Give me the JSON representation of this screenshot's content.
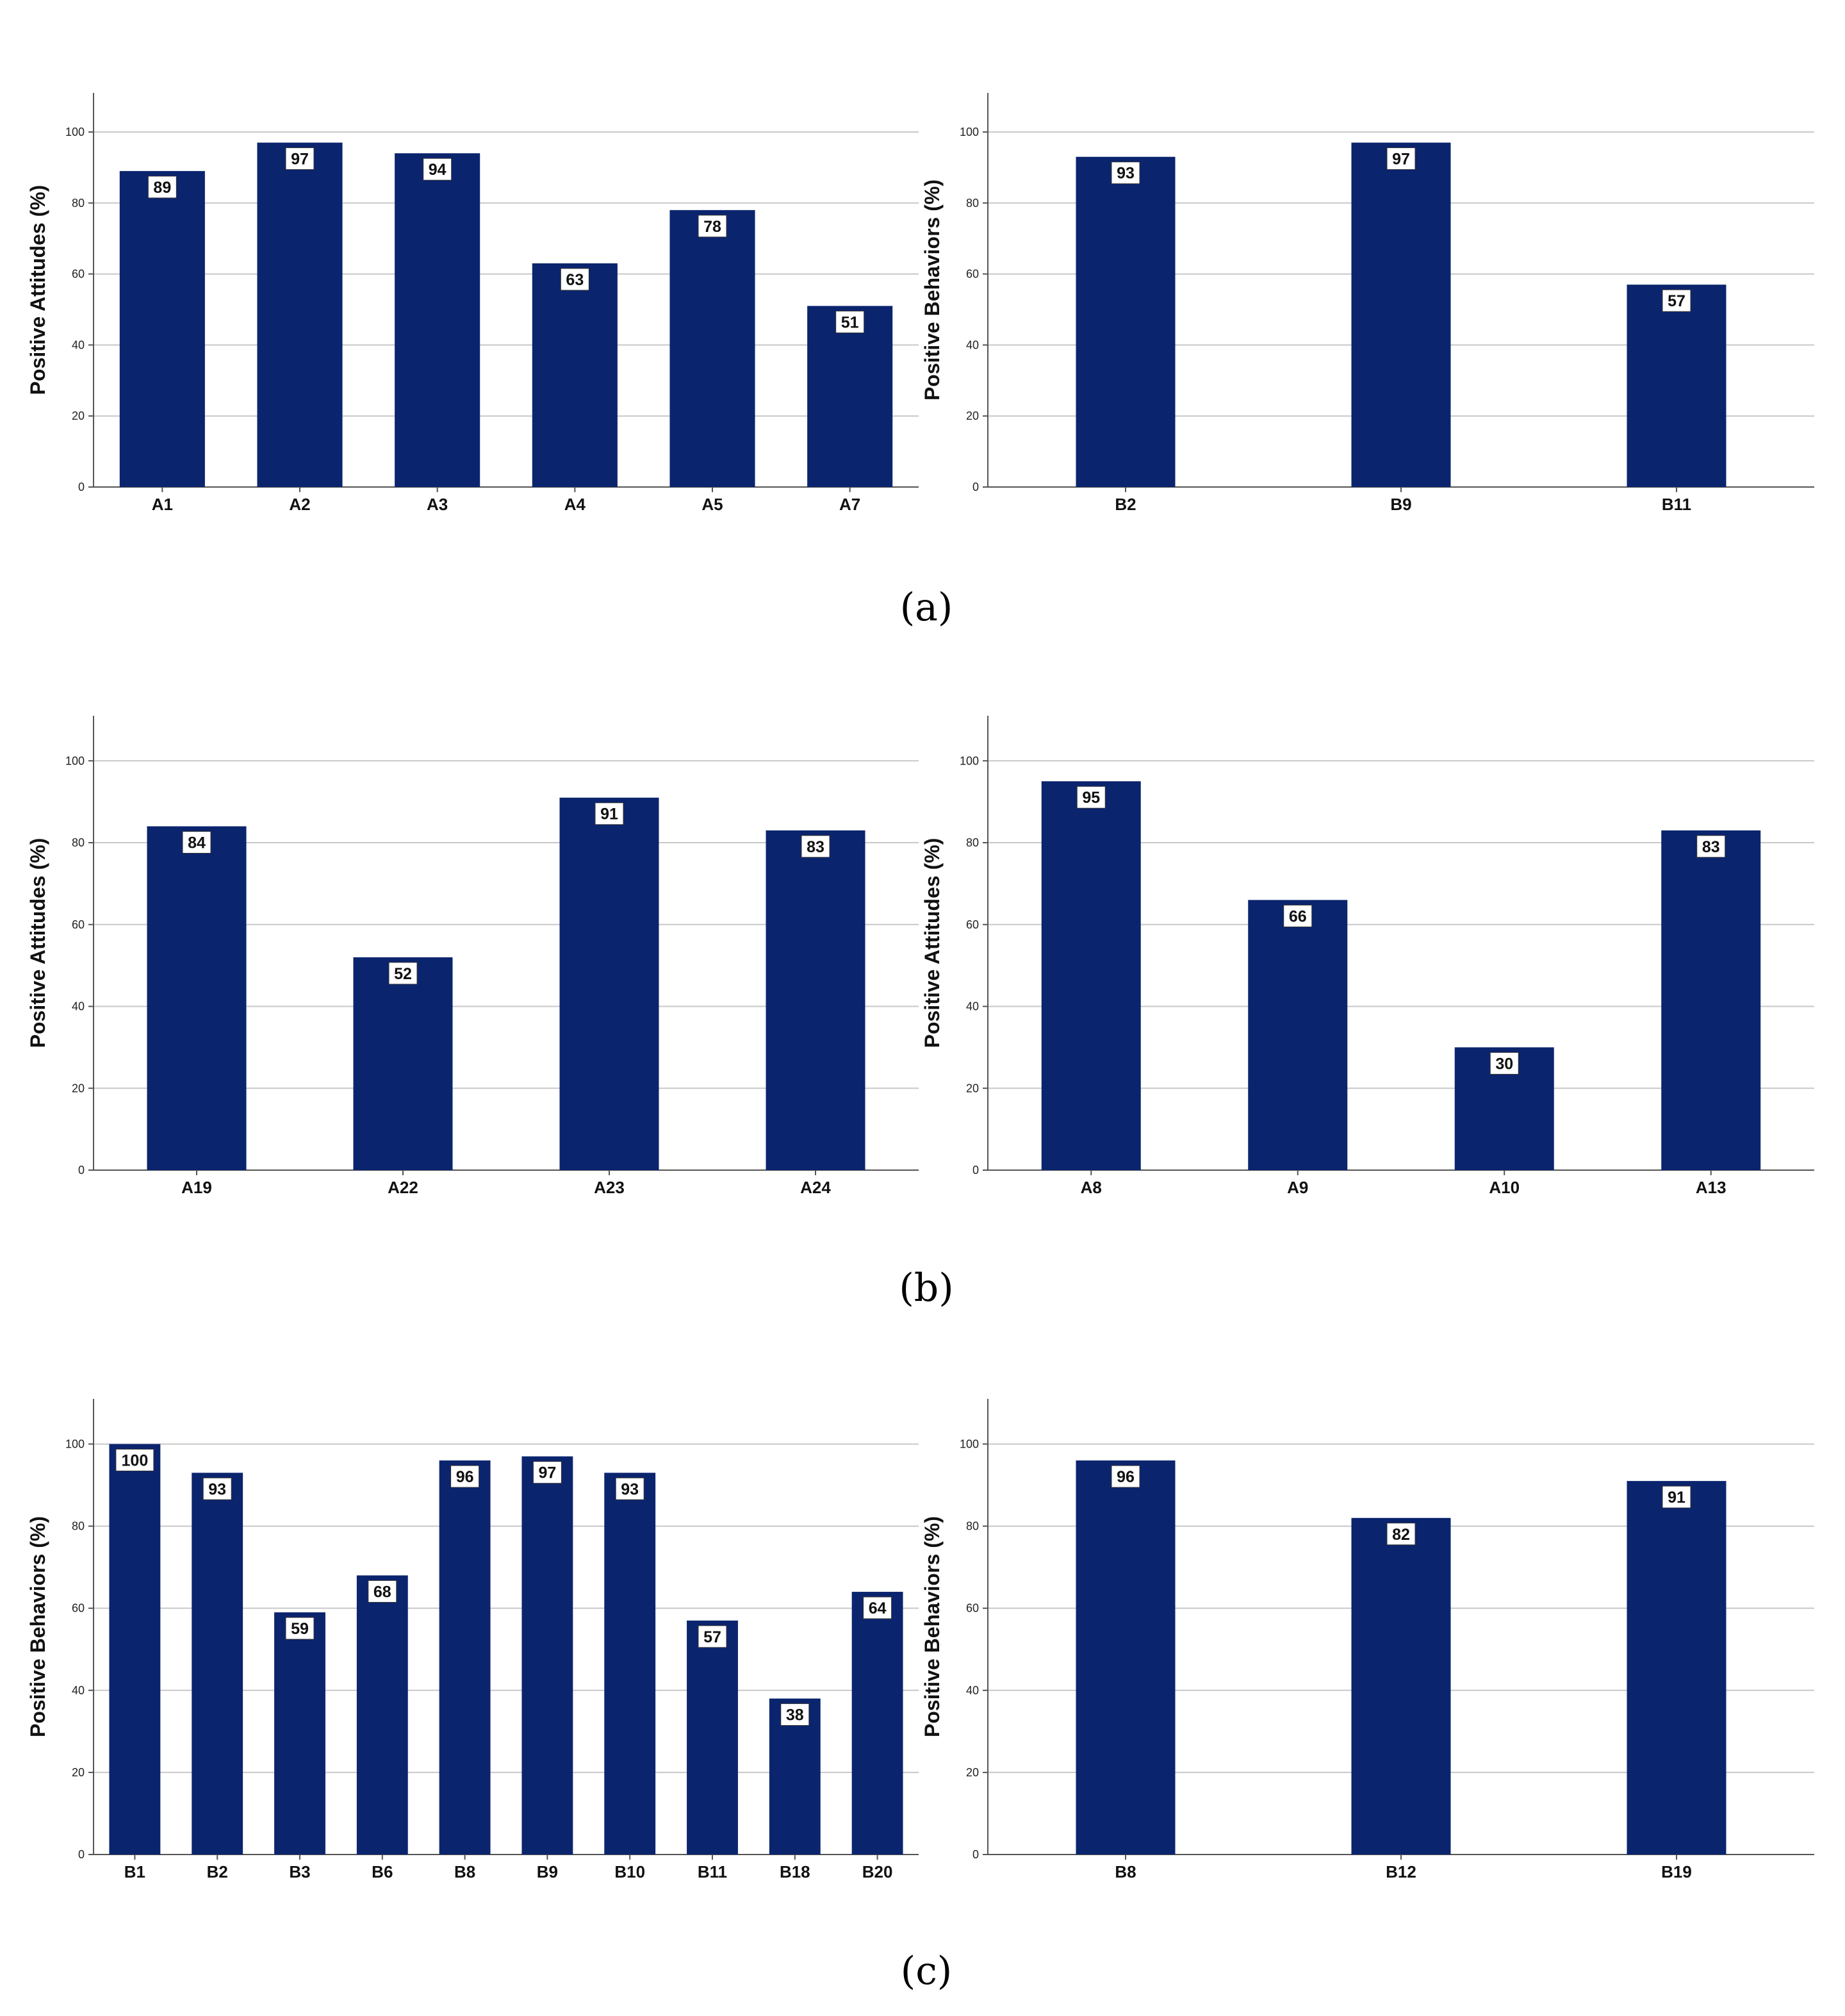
{
  "panel_captions": [
    "(a)",
    "(b)",
    "(c)"
  ],
  "colors": {
    "bar": "#0b246e",
    "grid": "#c8c8c8",
    "axis": "#555555",
    "label_box": "#ffffff"
  },
  "chart_data": [
    {
      "type": "bar",
      "panel": "(a)",
      "position": "left",
      "ylabel": "Positive Attitudes (%)",
      "categories": [
        "A1",
        "A2",
        "A3",
        "A4",
        "A5",
        "A7"
      ],
      "values": [
        89,
        97,
        94,
        63,
        78,
        51
      ],
      "ylim": [
        0,
        111
      ],
      "yticks": [
        0,
        20,
        40,
        60,
        80,
        100
      ],
      "grid": true
    },
    {
      "type": "bar",
      "panel": "(a)",
      "position": "right",
      "ylabel": "Positive Behaviors (%)",
      "categories": [
        "B2",
        "B9",
        "B11"
      ],
      "values": [
        93,
        97,
        57
      ],
      "ylim": [
        0,
        111
      ],
      "yticks": [
        0,
        20,
        40,
        60,
        80,
        100
      ],
      "grid": true
    },
    {
      "type": "bar",
      "panel": "(b)",
      "position": "left",
      "ylabel": "Positive Attitudes (%)",
      "categories": [
        "A19",
        "A22",
        "A23",
        "A24"
      ],
      "values": [
        84,
        52,
        91,
        83
      ],
      "ylim": [
        0,
        111
      ],
      "yticks": [
        0,
        20,
        40,
        60,
        80,
        100
      ],
      "grid": true
    },
    {
      "type": "bar",
      "panel": "(b)",
      "position": "right",
      "ylabel": "Positive Attitudes (%)",
      "categories": [
        "A8",
        "A9",
        "A10",
        "A13"
      ],
      "values": [
        95,
        66,
        30,
        83
      ],
      "ylim": [
        0,
        111
      ],
      "yticks": [
        0,
        20,
        40,
        60,
        80,
        100
      ],
      "grid": true
    },
    {
      "type": "bar",
      "panel": "(c)",
      "position": "left",
      "ylabel": "Positive Behaviors (%)",
      "categories": [
        "B1",
        "B2",
        "B3",
        "B6",
        "B8",
        "B9",
        "B10",
        "B11",
        "B18",
        "B20"
      ],
      "values": [
        100,
        93,
        59,
        68,
        96,
        97,
        93,
        57,
        38,
        64
      ],
      "ylim": [
        0,
        111
      ],
      "yticks": [
        0,
        20,
        40,
        60,
        80,
        100
      ],
      "grid": true
    },
    {
      "type": "bar",
      "panel": "(c)",
      "position": "right",
      "ylabel": "Positive Behaviors (%)",
      "categories": [
        "B8",
        "B12",
        "B19"
      ],
      "values": [
        96,
        82,
        91
      ],
      "ylim": [
        0,
        111
      ],
      "yticks": [
        0,
        20,
        40,
        60,
        80,
        100
      ],
      "grid": true
    }
  ]
}
